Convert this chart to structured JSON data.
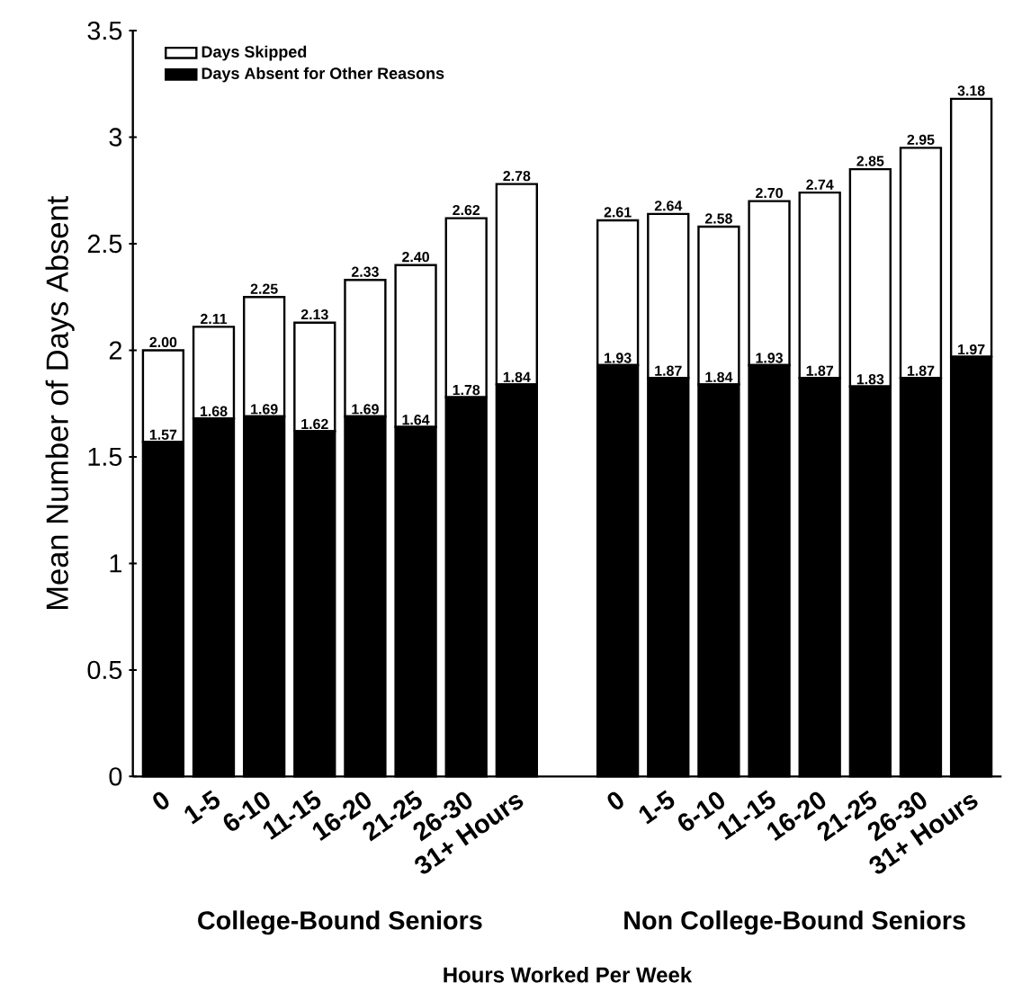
{
  "chart_data": {
    "type": "bar",
    "stacked": true,
    "xlabel": "Hours Worked Per Week",
    "ylabel": "Mean Number of Days Absent",
    "categories": [
      "0",
      "1-5",
      "6-10",
      "11-15",
      "16-20",
      "21-25",
      "26-30",
      "31+ Hours",
      null,
      "0",
      "1-5",
      "6-10",
      "11-15",
      "16-20",
      "21-25",
      "26-30",
      "31+ Hours"
    ],
    "series": [
      {
        "name": "Days Absent for Other Reasons",
        "color": "#000000",
        "values": [
          1.57,
          1.68,
          1.69,
          1.62,
          1.69,
          1.64,
          1.78,
          1.84,
          null,
          1.93,
          1.87,
          1.84,
          1.93,
          1.87,
          1.83,
          1.87,
          1.97
        ],
        "value_labels": [
          "1.57",
          "1.68",
          "1.69",
          "1.62",
          "1.69",
          "1.64",
          "1.78",
          "1.84",
          null,
          "1.93",
          "1.87",
          "1.84",
          "1.93",
          "1.87",
          "1.83",
          "1.87",
          "1.97"
        ]
      },
      {
        "name": "Days Skipped",
        "color": "#ffffff",
        "values": [
          0.43,
          0.43,
          0.56,
          0.51,
          0.64,
          0.76,
          0.84,
          0.94,
          null,
          0.68,
          0.77,
          0.74,
          0.77,
          0.87,
          1.02,
          1.08,
          1.21
        ]
      }
    ],
    "totals": [
      "2.00",
      "2.11",
      "2.25",
      "2.13",
      "2.33",
      "2.40",
      "2.62",
      "2.78",
      null,
      "2.61",
      "2.64",
      "2.58",
      "2.70",
      "2.74",
      "2.85",
      "2.95",
      "3.18"
    ],
    "annotations": [
      "College-Bound Seniors",
      "Non College-Bound Seniors"
    ],
    "ylim": [
      0,
      3.5
    ],
    "yticks": [
      0,
      0.5,
      1,
      1.5,
      2,
      2.5,
      3,
      3.5
    ],
    "grid": false,
    "legend": "top left"
  }
}
